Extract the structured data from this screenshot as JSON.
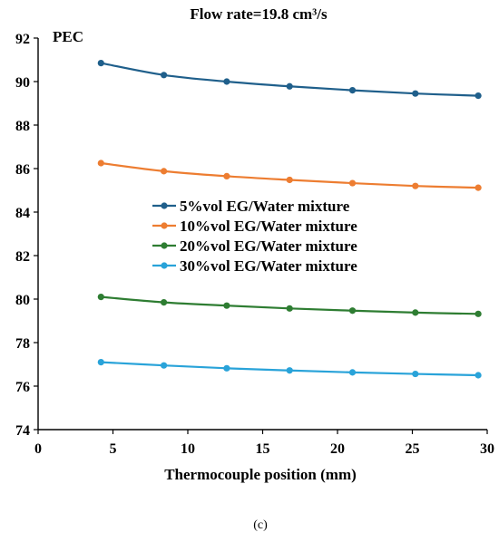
{
  "chart_data": {
    "type": "line",
    "title": "Flow rate=19.8 cm³/s",
    "xlabel": "Thermocouple position (mm)",
    "ylabel": "PEC",
    "xlim": [
      0,
      30
    ],
    "ylim": [
      74,
      92
    ],
    "xticks": [
      0,
      5,
      10,
      15,
      20,
      25,
      30
    ],
    "yticks": [
      74,
      76,
      78,
      80,
      82,
      84,
      86,
      88,
      90,
      92
    ],
    "grid": false,
    "legend_position": "center-left",
    "x": [
      4.2,
      8.4,
      12.6,
      16.8,
      21.0,
      25.2,
      29.4
    ],
    "series": [
      {
        "name": "5%vol EG/Water mixture",
        "color": "#1f5f8b",
        "values": [
          90.85,
          90.3,
          90.0,
          89.78,
          89.6,
          89.45,
          89.35
        ]
      },
      {
        "name": "10%vol EG/Water mixture",
        "color": "#ed7d31",
        "values": [
          86.25,
          85.88,
          85.65,
          85.48,
          85.33,
          85.2,
          85.12
        ]
      },
      {
        "name": "20%vol EG/Water mixture",
        "color": "#2e7d32",
        "values": [
          80.1,
          79.85,
          79.7,
          79.57,
          79.47,
          79.38,
          79.32
        ]
      },
      {
        "name": "30%vol EG/Water mixture",
        "color": "#29a3d9",
        "values": [
          77.1,
          76.95,
          76.82,
          76.72,
          76.63,
          76.56,
          76.5
        ]
      }
    ]
  },
  "caption": "(c)"
}
